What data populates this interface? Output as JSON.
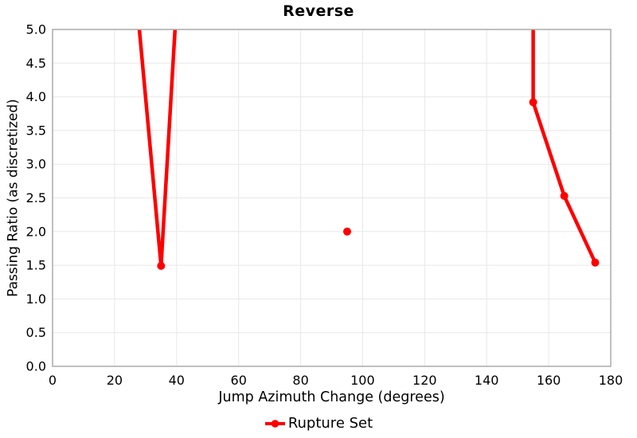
{
  "chart_data": {
    "type": "line",
    "title": "Reverse",
    "xlabel": "Jump Azimuth Change (degrees)",
    "ylabel": "Passing Ratio (as discretized)",
    "xlim": [
      0,
      180
    ],
    "ylim": [
      0.0,
      5.0
    ],
    "grid": true,
    "legend_position": "bottom",
    "xticks": {
      "values": [
        0,
        20,
        40,
        60,
        80,
        100,
        120,
        140,
        160,
        180
      ],
      "labels": [
        "0",
        "20",
        "40",
        "60",
        "80",
        "100",
        "120",
        "140",
        "160",
        "180"
      ]
    },
    "yticks": {
      "values": [
        0.0,
        0.5,
        1.0,
        1.5,
        2.0,
        2.5,
        3.0,
        3.5,
        4.0,
        4.5,
        5.0
      ],
      "labels": [
        "0.0",
        "0.5",
        "1.0",
        "1.5",
        "2.0",
        "2.5",
        "3.0",
        "3.5",
        "4.0",
        "4.5",
        "5.0"
      ]
    },
    "legend": [
      {
        "label": "Rupture Set",
        "color": "#ff0000"
      }
    ],
    "series": [
      {
        "name": "Rupture Set",
        "color": "#ff0000",
        "marker_points": [
          [
            35,
            1.49
          ],
          [
            95,
            2.0
          ],
          [
            155,
            3.92
          ],
          [
            165,
            2.53
          ],
          [
            175,
            1.54
          ]
        ],
        "line_segments": [
          [
            [
              28.0,
              5.0
            ],
            [
              35,
              1.49
            ],
            [
              39.5,
              5.0
            ]
          ],
          [
            [
              155,
              5.0
            ],
            [
              155,
              3.92
            ],
            [
              165,
              2.53
            ],
            [
              175,
              1.54
            ]
          ]
        ],
        "clipped_at_top": true
      }
    ],
    "colors": {
      "series": "#ff0000",
      "grid": "#e8e8e8",
      "axis_border": "#aaaaaa",
      "text": "#000000",
      "background": "#ffffff"
    }
  }
}
